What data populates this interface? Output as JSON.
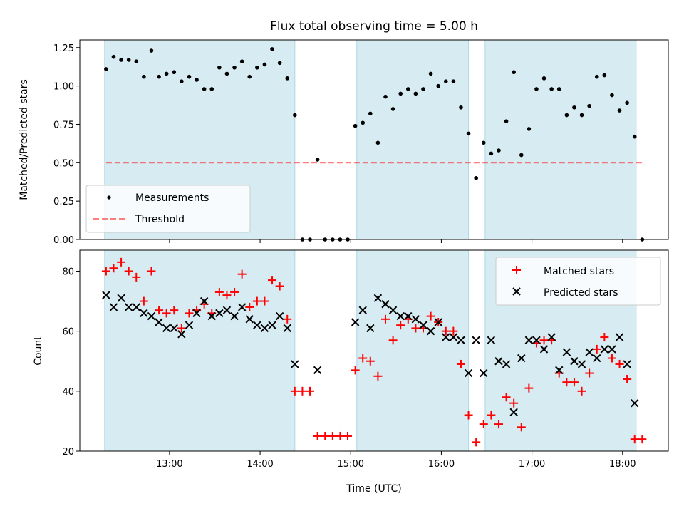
{
  "figure": {
    "title": "Flux total observing time = 5.00 h",
    "xlabel": "Time (UTC)",
    "x_ticks": [
      "13:00",
      "14:00",
      "15:00",
      "16:00",
      "17:00",
      "18:00"
    ]
  },
  "colors": {
    "shade": "#add8e6",
    "measurements": "#000000",
    "threshold": "#ff0000",
    "matched": "#ff0000",
    "predicted": "#000000"
  },
  "chart_data": [
    {
      "type": "scatter",
      "panel": "top",
      "ylabel": "Matched/Predicted stars",
      "ylim": [
        0,
        1.3
      ],
      "y_ticks": [
        "0.00",
        "0.25",
        "0.50",
        "0.75",
        "1.00",
        "1.25"
      ],
      "legend": {
        "placement": "lower-left",
        "measurements_label": "Measurements",
        "threshold_label": "Threshold"
      },
      "threshold": 0.5,
      "shaded_intervals": [
        [
          "12:17",
          "14:23"
        ],
        [
          "15:04",
          "16:18"
        ],
        [
          "16:29",
          "18:09"
        ]
      ],
      "series": [
        {
          "name": "Measurements",
          "points": [
            [
              "12:18",
              1.11
            ],
            [
              "12:23",
              1.19
            ],
            [
              "12:28",
              1.17
            ],
            [
              "12:33",
              1.17
            ],
            [
              "12:38",
              1.16
            ],
            [
              "12:43",
              1.06
            ],
            [
              "12:48",
              1.23
            ],
            [
              "12:53",
              1.06
            ],
            [
              "12:58",
              1.08
            ],
            [
              "13:03",
              1.09
            ],
            [
              "13:08",
              1.03
            ],
            [
              "13:13",
              1.06
            ],
            [
              "13:18",
              1.04
            ],
            [
              "13:23",
              0.98
            ],
            [
              "13:28",
              0.98
            ],
            [
              "13:33",
              1.12
            ],
            [
              "13:38",
              1.08
            ],
            [
              "13:43",
              1.12
            ],
            [
              "13:48",
              1.16
            ],
            [
              "13:53",
              1.06
            ],
            [
              "13:58",
              1.12
            ],
            [
              "14:03",
              1.14
            ],
            [
              "14:08",
              1.24
            ],
            [
              "14:13",
              1.15
            ],
            [
              "14:18",
              1.05
            ],
            [
              "14:23",
              0.81
            ],
            [
              "14:28",
              0.0
            ],
            [
              "14:33",
              0.0
            ],
            [
              "14:38",
              0.52
            ],
            [
              "14:43",
              0.0
            ],
            [
              "14:48",
              0.0
            ],
            [
              "14:53",
              0.0
            ],
            [
              "14:58",
              0.0
            ],
            [
              "15:03",
              0.74
            ],
            [
              "15:08",
              0.76
            ],
            [
              "15:13",
              0.82
            ],
            [
              "15:18",
              0.63
            ],
            [
              "15:23",
              0.93
            ],
            [
              "15:28",
              0.85
            ],
            [
              "15:33",
              0.95
            ],
            [
              "15:38",
              0.98
            ],
            [
              "15:43",
              0.95
            ],
            [
              "15:48",
              0.98
            ],
            [
              "15:53",
              1.08
            ],
            [
              "15:58",
              1.0
            ],
            [
              "16:03",
              1.03
            ],
            [
              "16:08",
              1.03
            ],
            [
              "16:13",
              0.86
            ],
            [
              "16:18",
              0.69
            ],
            [
              "16:23",
              0.4
            ],
            [
              "16:28",
              0.63
            ],
            [
              "16:33",
              0.56
            ],
            [
              "16:38",
              0.58
            ],
            [
              "16:43",
              0.77
            ],
            [
              "16:48",
              1.09
            ],
            [
              "16:53",
              0.55
            ],
            [
              "16:58",
              0.72
            ],
            [
              "17:03",
              0.98
            ],
            [
              "17:08",
              1.05
            ],
            [
              "17:13",
              0.98
            ],
            [
              "17:18",
              0.98
            ],
            [
              "17:23",
              0.81
            ],
            [
              "17:28",
              0.86
            ],
            [
              "17:33",
              0.81
            ],
            [
              "17:38",
              0.87
            ],
            [
              "17:43",
              1.06
            ],
            [
              "17:48",
              1.07
            ],
            [
              "17:53",
              0.94
            ],
            [
              "17:58",
              0.84
            ],
            [
              "18:03",
              0.89
            ],
            [
              "18:08",
              0.67
            ],
            [
              "18:13",
              0.0
            ]
          ]
        }
      ]
    },
    {
      "type": "scatter",
      "panel": "bottom",
      "ylabel": "Count",
      "ylim": [
        20,
        87
      ],
      "y_ticks": [
        "20",
        "40",
        "60",
        "80"
      ],
      "legend": {
        "placement": "upper-right"
      },
      "shaded_intervals": [
        [
          "12:17",
          "14:23"
        ],
        [
          "15:04",
          "16:18"
        ],
        [
          "16:29",
          "18:09"
        ]
      ],
      "series": [
        {
          "name": "Matched stars",
          "points": [
            [
              "12:18",
              80
            ],
            [
              "12:23",
              81
            ],
            [
              "12:28",
              83
            ],
            [
              "12:33",
              80
            ],
            [
              "12:38",
              78
            ],
            [
              "12:43",
              70
            ],
            [
              "12:48",
              80
            ],
            [
              "12:53",
              67
            ],
            [
              "12:58",
              66
            ],
            [
              "13:03",
              67
            ],
            [
              "13:08",
              61
            ],
            [
              "13:13",
              66
            ],
            [
              "13:18",
              67
            ],
            [
              "13:23",
              69
            ],
            [
              "13:28",
              66
            ],
            [
              "13:33",
              73
            ],
            [
              "13:38",
              72
            ],
            [
              "13:43",
              73
            ],
            [
              "13:48",
              79
            ],
            [
              "13:53",
              68
            ],
            [
              "13:58",
              70
            ],
            [
              "14:03",
              70
            ],
            [
              "14:08",
              77
            ],
            [
              "14:13",
              75
            ],
            [
              "14:18",
              64
            ],
            [
              "14:23",
              40
            ],
            [
              "14:28",
              40
            ],
            [
              "14:33",
              40
            ],
            [
              "14:38",
              25
            ],
            [
              "14:43",
              25
            ],
            [
              "14:48",
              25
            ],
            [
              "14:53",
              25
            ],
            [
              "14:58",
              25
            ],
            [
              "15:03",
              47
            ],
            [
              "15:08",
              51
            ],
            [
              "15:13",
              50
            ],
            [
              "15:18",
              45
            ],
            [
              "15:23",
              64
            ],
            [
              "15:28",
              57
            ],
            [
              "15:33",
              62
            ],
            [
              "15:38",
              64
            ],
            [
              "15:43",
              61
            ],
            [
              "15:48",
              61
            ],
            [
              "15:53",
              65
            ],
            [
              "15:58",
              63
            ],
            [
              "16:03",
              60
            ],
            [
              "16:08",
              60
            ],
            [
              "16:13",
              49
            ],
            [
              "16:18",
              32
            ],
            [
              "16:23",
              23
            ],
            [
              "16:28",
              29
            ],
            [
              "16:33",
              32
            ],
            [
              "16:38",
              29
            ],
            [
              "16:43",
              38
            ],
            [
              "16:48",
              36
            ],
            [
              "16:53",
              28
            ],
            [
              "16:58",
              41
            ],
            [
              "17:03",
              56
            ],
            [
              "17:08",
              57
            ],
            [
              "17:13",
              57
            ],
            [
              "17:18",
              46
            ],
            [
              "17:23",
              43
            ],
            [
              "17:28",
              43
            ],
            [
              "17:33",
              40
            ],
            [
              "17:38",
              46
            ],
            [
              "17:43",
              54
            ],
            [
              "17:48",
              58
            ],
            [
              "17:53",
              51
            ],
            [
              "17:58",
              49
            ],
            [
              "18:03",
              44
            ],
            [
              "18:08",
              24
            ],
            [
              "18:13",
              24
            ]
          ]
        },
        {
          "name": "Predicted stars",
          "points": [
            [
              "12:18",
              72
            ],
            [
              "12:23",
              68
            ],
            [
              "12:28",
              71
            ],
            [
              "12:33",
              68
            ],
            [
              "12:38",
              68
            ],
            [
              "12:43",
              66
            ],
            [
              "12:48",
              65
            ],
            [
              "12:53",
              63
            ],
            [
              "12:58",
              61
            ],
            [
              "13:03",
              61
            ],
            [
              "13:08",
              59
            ],
            [
              "13:13",
              62
            ],
            [
              "13:18",
              66
            ],
            [
              "13:23",
              70
            ],
            [
              "13:28",
              65
            ],
            [
              "13:33",
              66
            ],
            [
              "13:38",
              67
            ],
            [
              "13:43",
              65
            ],
            [
              "13:48",
              68
            ],
            [
              "13:53",
              64
            ],
            [
              "13:58",
              62
            ],
            [
              "14:03",
              61
            ],
            [
              "14:08",
              62
            ],
            [
              "14:13",
              65
            ],
            [
              "14:18",
              61
            ],
            [
              "14:23",
              49
            ],
            [
              "14:38",
              47
            ],
            [
              "15:03",
              63
            ],
            [
              "15:08",
              67
            ],
            [
              "15:13",
              61
            ],
            [
              "15:18",
              71
            ],
            [
              "15:23",
              69
            ],
            [
              "15:28",
              67
            ],
            [
              "15:33",
              65
            ],
            [
              "15:38",
              65
            ],
            [
              "15:43",
              64
            ],
            [
              "15:48",
              62
            ],
            [
              "15:53",
              60
            ],
            [
              "15:58",
              63
            ],
            [
              "16:03",
              58
            ],
            [
              "16:08",
              58
            ],
            [
              "16:13",
              57
            ],
            [
              "16:18",
              46
            ],
            [
              "16:23",
              57
            ],
            [
              "16:28",
              46
            ],
            [
              "16:33",
              57
            ],
            [
              "16:38",
              50
            ],
            [
              "16:43",
              49
            ],
            [
              "16:48",
              33
            ],
            [
              "16:53",
              51
            ],
            [
              "16:58",
              57
            ],
            [
              "17:03",
              57
            ],
            [
              "17:08",
              54
            ],
            [
              "17:13",
              58
            ],
            [
              "17:18",
              47
            ],
            [
              "17:23",
              53
            ],
            [
              "17:28",
              50
            ],
            [
              "17:33",
              49
            ],
            [
              "17:38",
              53
            ],
            [
              "17:43",
              51
            ],
            [
              "17:48",
              54
            ],
            [
              "17:53",
              54
            ],
            [
              "17:58",
              58
            ],
            [
              "18:03",
              49
            ],
            [
              "18:08",
              36
            ]
          ]
        }
      ]
    }
  ]
}
